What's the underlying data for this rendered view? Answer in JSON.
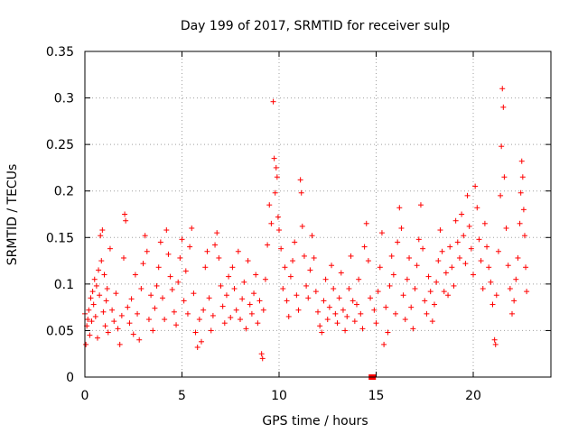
{
  "chart_data": {
    "type": "scatter",
    "title": "Day 199 of 2017, SRMTID for receiver sulp",
    "xlabel": "GPS time / hours",
    "ylabel": "SRMTID / TECUs",
    "xlim": [
      0,
      24
    ],
    "ylim": [
      0,
      0.35
    ],
    "xticks": [
      0,
      5,
      10,
      15,
      20
    ],
    "xtick_labels": [
      "0",
      "5",
      "10",
      "15",
      "20"
    ],
    "yticks": [
      0,
      0.05,
      0.1,
      0.15,
      0.2,
      0.25,
      0.3,
      0.35
    ],
    "ytick_labels": [
      "0",
      "0.05",
      "0.1",
      "0.15",
      "0.2",
      "0.25",
      "0.3",
      "0.35"
    ],
    "grid": true,
    "series": [
      {
        "name": "SRMTID",
        "marker": "plus",
        "color": "#ff0000",
        "points": [
          [
            0.0,
            0.068
          ],
          [
            0.05,
            0.035
          ],
          [
            0.1,
            0.055
          ],
          [
            0.15,
            0.062
          ],
          [
            0.2,
            0.072
          ],
          [
            0.25,
            0.045
          ],
          [
            0.3,
            0.085
          ],
          [
            0.35,
            0.06
          ],
          [
            0.4,
            0.092
          ],
          [
            0.45,
            0.078
          ],
          [
            0.5,
            0.105
          ],
          [
            0.55,
            0.065
          ],
          [
            0.6,
            0.098
          ],
          [
            0.65,
            0.042
          ],
          [
            0.7,
            0.115
          ],
          [
            0.75,
            0.088
          ],
          [
            0.8,
            0.152
          ],
          [
            0.85,
            0.125
          ],
          [
            0.9,
            0.158
          ],
          [
            0.95,
            0.07
          ],
          [
            1.0,
            0.11
          ],
          [
            1.05,
            0.055
          ],
          [
            1.1,
            0.082
          ],
          [
            1.15,
            0.095
          ],
          [
            1.2,
            0.048
          ],
          [
            1.3,
            0.138
          ],
          [
            1.4,
            0.072
          ],
          [
            1.5,
            0.06
          ],
          [
            1.6,
            0.09
          ],
          [
            1.7,
            0.052
          ],
          [
            1.8,
            0.035
          ],
          [
            1.9,
            0.066
          ],
          [
            2.0,
            0.128
          ],
          [
            2.05,
            0.175
          ],
          [
            2.1,
            0.168
          ],
          [
            2.2,
            0.075
          ],
          [
            2.3,
            0.058
          ],
          [
            2.4,
            0.084
          ],
          [
            2.5,
            0.046
          ],
          [
            2.6,
            0.11
          ],
          [
            2.7,
            0.068
          ],
          [
            2.8,
            0.04
          ],
          [
            2.9,
            0.095
          ],
          [
            3.0,
            0.122
          ],
          [
            3.1,
            0.152
          ],
          [
            3.2,
            0.135
          ],
          [
            3.3,
            0.062
          ],
          [
            3.4,
            0.088
          ],
          [
            3.5,
            0.05
          ],
          [
            3.6,
            0.074
          ],
          [
            3.7,
            0.098
          ],
          [
            3.8,
            0.118
          ],
          [
            3.9,
            0.145
          ],
          [
            4.0,
            0.085
          ],
          [
            4.1,
            0.062
          ],
          [
            4.2,
            0.158
          ],
          [
            4.3,
            0.132
          ],
          [
            4.4,
            0.108
          ],
          [
            4.5,
            0.094
          ],
          [
            4.6,
            0.07
          ],
          [
            4.7,
            0.056
          ],
          [
            4.8,
            0.102
          ],
          [
            4.9,
            0.128
          ],
          [
            5.0,
            0.148
          ],
          [
            5.1,
            0.082
          ],
          [
            5.2,
            0.114
          ],
          [
            5.3,
            0.068
          ],
          [
            5.4,
            0.14
          ],
          [
            5.5,
            0.16
          ],
          [
            5.6,
            0.09
          ],
          [
            5.7,
            0.048
          ],
          [
            5.8,
            0.032
          ],
          [
            5.9,
            0.062
          ],
          [
            6.0,
            0.038
          ],
          [
            6.1,
            0.072
          ],
          [
            6.2,
            0.118
          ],
          [
            6.3,
            0.135
          ],
          [
            6.4,
            0.085
          ],
          [
            6.5,
            0.05
          ],
          [
            6.6,
            0.066
          ],
          [
            6.7,
            0.142
          ],
          [
            6.8,
            0.155
          ],
          [
            6.9,
            0.128
          ],
          [
            7.0,
            0.098
          ],
          [
            7.1,
            0.076
          ],
          [
            7.2,
            0.058
          ],
          [
            7.3,
            0.088
          ],
          [
            7.4,
            0.108
          ],
          [
            7.5,
            0.064
          ],
          [
            7.6,
            0.118
          ],
          [
            7.7,
            0.095
          ],
          [
            7.8,
            0.072
          ],
          [
            7.9,
            0.135
          ],
          [
            8.0,
            0.062
          ],
          [
            8.1,
            0.084
          ],
          [
            8.2,
            0.102
          ],
          [
            8.3,
            0.052
          ],
          [
            8.4,
            0.125
          ],
          [
            8.5,
            0.078
          ],
          [
            8.6,
            0.068
          ],
          [
            8.7,
            0.09
          ],
          [
            8.8,
            0.11
          ],
          [
            8.9,
            0.058
          ],
          [
            9.0,
            0.082
          ],
          [
            9.1,
            0.025
          ],
          [
            9.15,
            0.02
          ],
          [
            9.2,
            0.072
          ],
          [
            9.3,
            0.105
          ],
          [
            9.4,
            0.142
          ],
          [
            9.5,
            0.185
          ],
          [
            9.6,
            0.165
          ],
          [
            9.7,
            0.296
          ],
          [
            9.75,
            0.235
          ],
          [
            9.8,
            0.198
          ],
          [
            9.85,
            0.225
          ],
          [
            9.9,
            0.215
          ],
          [
            9.95,
            0.172
          ],
          [
            10.0,
            0.158
          ],
          [
            10.1,
            0.138
          ],
          [
            10.2,
            0.095
          ],
          [
            10.3,
            0.118
          ],
          [
            10.4,
            0.082
          ],
          [
            10.5,
            0.065
          ],
          [
            10.6,
            0.108
          ],
          [
            10.7,
            0.125
          ],
          [
            10.8,
            0.145
          ],
          [
            10.9,
            0.088
          ],
          [
            11.0,
            0.072
          ],
          [
            11.1,
            0.212
          ],
          [
            11.15,
            0.198
          ],
          [
            11.2,
            0.162
          ],
          [
            11.3,
            0.13
          ],
          [
            11.4,
            0.098
          ],
          [
            11.5,
            0.085
          ],
          [
            11.6,
            0.115
          ],
          [
            11.7,
            0.152
          ],
          [
            11.8,
            0.128
          ],
          [
            11.9,
            0.092
          ],
          [
            12.0,
            0.07
          ],
          [
            12.1,
            0.055
          ],
          [
            12.2,
            0.048
          ],
          [
            12.3,
            0.082
          ],
          [
            12.4,
            0.105
          ],
          [
            12.5,
            0.062
          ],
          [
            12.6,
            0.075
          ],
          [
            12.7,
            0.12
          ],
          [
            12.8,
            0.095
          ],
          [
            12.9,
            0.068
          ],
          [
            13.0,
            0.058
          ],
          [
            13.1,
            0.085
          ],
          [
            13.2,
            0.112
          ],
          [
            13.3,
            0.072
          ],
          [
            13.4,
            0.05
          ],
          [
            13.5,
            0.065
          ],
          [
            13.6,
            0.095
          ],
          [
            13.7,
            0.13
          ],
          [
            13.8,
            0.082
          ],
          [
            13.9,
            0.06
          ],
          [
            14.0,
            0.078
          ],
          [
            14.1,
            0.105
          ],
          [
            14.2,
            0.068
          ],
          [
            14.3,
            0.052
          ],
          [
            14.4,
            0.14
          ],
          [
            14.5,
            0.165
          ],
          [
            14.6,
            0.125
          ],
          [
            14.7,
            0.085
          ],
          [
            14.8,
            0.0
          ],
          [
            14.9,
            0.072
          ],
          [
            15.0,
            0.058
          ],
          [
            15.1,
            0.092
          ],
          [
            15.2,
            0.118
          ],
          [
            15.3,
            0.155
          ],
          [
            15.4,
            0.035
          ],
          [
            15.5,
            0.075
          ],
          [
            15.6,
            0.048
          ],
          [
            15.7,
            0.098
          ],
          [
            15.8,
            0.13
          ],
          [
            15.9,
            0.11
          ],
          [
            16.0,
            0.068
          ],
          [
            16.1,
            0.145
          ],
          [
            16.2,
            0.182
          ],
          [
            16.3,
            0.16
          ],
          [
            16.4,
            0.088
          ],
          [
            16.5,
            0.062
          ],
          [
            16.6,
            0.105
          ],
          [
            16.7,
            0.128
          ],
          [
            16.8,
            0.075
          ],
          [
            16.9,
            0.052
          ],
          [
            17.0,
            0.095
          ],
          [
            17.1,
            0.12
          ],
          [
            17.2,
            0.148
          ],
          [
            17.3,
            0.185
          ],
          [
            17.4,
            0.138
          ],
          [
            17.5,
            0.082
          ],
          [
            17.6,
            0.068
          ],
          [
            17.7,
            0.108
          ],
          [
            17.8,
            0.092
          ],
          [
            17.9,
            0.06
          ],
          [
            18.0,
            0.078
          ],
          [
            18.1,
            0.102
          ],
          [
            18.2,
            0.125
          ],
          [
            18.3,
            0.158
          ],
          [
            18.4,
            0.135
          ],
          [
            18.5,
            0.092
          ],
          [
            18.6,
            0.112
          ],
          [
            18.7,
            0.088
          ],
          [
            18.8,
            0.14
          ],
          [
            18.9,
            0.118
          ],
          [
            19.0,
            0.098
          ],
          [
            19.1,
            0.168
          ],
          [
            19.2,
            0.145
          ],
          [
            19.3,
            0.128
          ],
          [
            19.4,
            0.175
          ],
          [
            19.5,
            0.152
          ],
          [
            19.6,
            0.122
          ],
          [
            19.7,
            0.195
          ],
          [
            19.8,
            0.162
          ],
          [
            19.9,
            0.138
          ],
          [
            20.0,
            0.11
          ],
          [
            20.1,
            0.205
          ],
          [
            20.2,
            0.182
          ],
          [
            20.3,
            0.148
          ],
          [
            20.4,
            0.125
          ],
          [
            20.5,
            0.095
          ],
          [
            20.6,
            0.165
          ],
          [
            20.7,
            0.14
          ],
          [
            20.8,
            0.118
          ],
          [
            20.9,
            0.102
          ],
          [
            21.0,
            0.078
          ],
          [
            21.1,
            0.04
          ],
          [
            21.15,
            0.035
          ],
          [
            21.2,
            0.088
          ],
          [
            21.3,
            0.135
          ],
          [
            21.4,
            0.195
          ],
          [
            21.45,
            0.248
          ],
          [
            21.5,
            0.31
          ],
          [
            21.55,
            0.29
          ],
          [
            21.6,
            0.215
          ],
          [
            21.7,
            0.16
          ],
          [
            21.8,
            0.12
          ],
          [
            21.9,
            0.095
          ],
          [
            22.0,
            0.068
          ],
          [
            22.1,
            0.082
          ],
          [
            22.2,
            0.105
          ],
          [
            22.3,
            0.128
          ],
          [
            22.4,
            0.165
          ],
          [
            22.45,
            0.198
          ],
          [
            22.5,
            0.232
          ],
          [
            22.55,
            0.215
          ],
          [
            22.6,
            0.18
          ],
          [
            22.65,
            0.152
          ],
          [
            22.7,
            0.118
          ],
          [
            22.75,
            0.092
          ]
        ]
      }
    ],
    "highlight_point": [
      14.8,
      0.0
    ]
  }
}
